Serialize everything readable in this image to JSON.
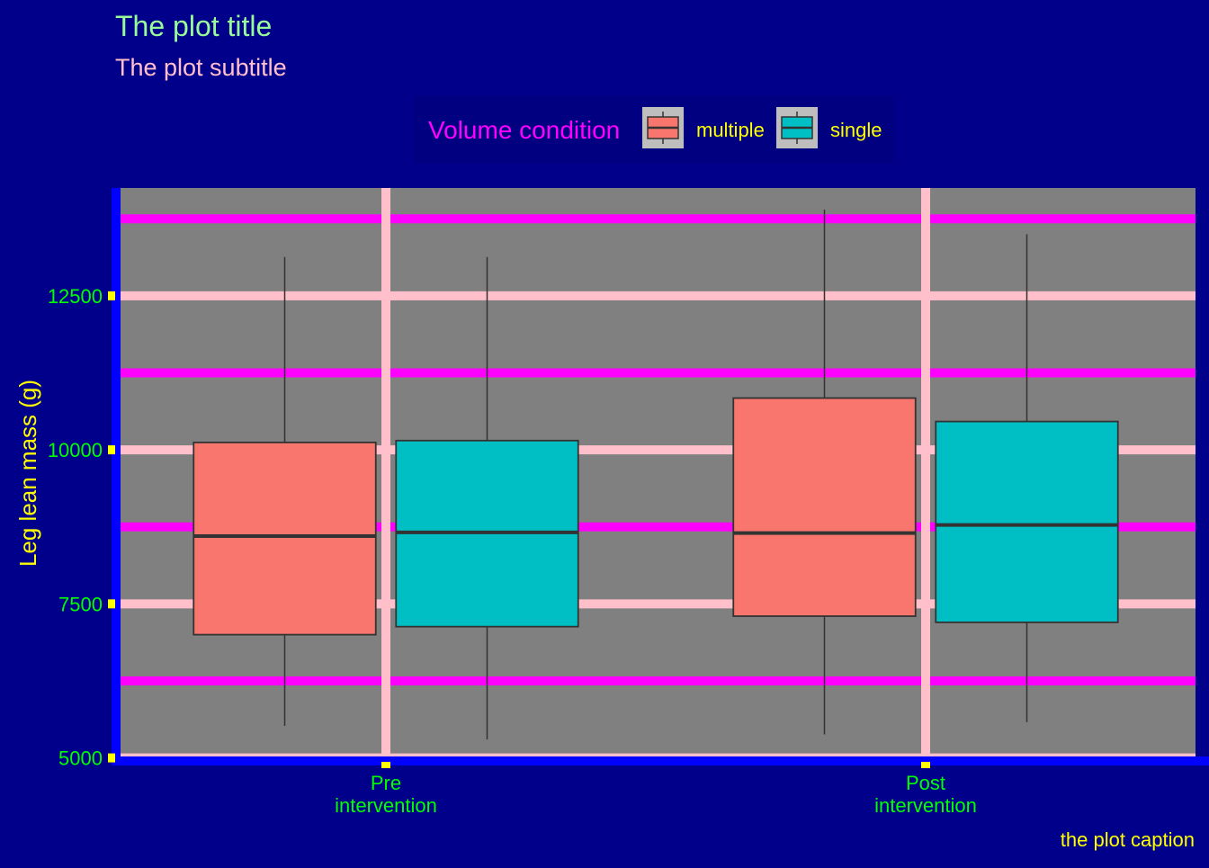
{
  "chart_data": {
    "type": "boxplot",
    "title": "The plot title",
    "subtitle": "The plot subtitle",
    "caption": "the plot caption",
    "xlabel": "",
    "ylabel": "Leg lean mass (g)",
    "categories": [
      "Pre\nintervention",
      "Post\nintervention"
    ],
    "ylim": [
      4950,
      14250
    ],
    "y_ticks": [
      5000,
      7500,
      10000,
      12500
    ],
    "y_tick_labels": [
      "5000",
      "7500",
      "10000",
      "12500"
    ],
    "minor_gridlines": [
      6250,
      8750,
      11250,
      13750
    ],
    "legend": {
      "title": "Volume condition",
      "position": "top",
      "entries": [
        "multiple",
        "single"
      ]
    },
    "series": [
      {
        "name": "multiple",
        "color": "#F8766D",
        "boxes": [
          {
            "category": "Pre\nintervention",
            "min": 5520,
            "q1": 7000,
            "median": 8600,
            "q3": 10120,
            "max": 13130
          },
          {
            "category": "Post\nintervention",
            "min": 5380,
            "q1": 7300,
            "median": 8650,
            "q3": 10840,
            "max": 13900
          }
        ]
      },
      {
        "name": "single",
        "color": "#00BFC4",
        "boxes": [
          {
            "category": "Pre\nintervention",
            "min": 5300,
            "q1": 7130,
            "median": 8660,
            "q3": 10150,
            "max": 13130
          },
          {
            "category": "Post\nintervention",
            "min": 5580,
            "q1": 7200,
            "median": 8780,
            "q3": 10460,
            "max": 13500
          }
        ]
      }
    ],
    "colors": {
      "background": "#00008B",
      "panel": "#808080",
      "major_grid": "#FFC0CB",
      "minor_grid": "#FF00FF",
      "axis_line": "#0000FF",
      "tick_mark": "#FFFF00",
      "tick_label": "#00FF00",
      "title": "#98FB98",
      "subtitle": "#FFC0CB",
      "axis_title": "#FFFF00",
      "legend_title": "#FF00FF",
      "legend_label": "#FFFF00",
      "legend_bg": "#000080",
      "legend_key_bg": "#BEBEBE",
      "caption": "#FFFF00",
      "box_outline": "#333333"
    }
  }
}
